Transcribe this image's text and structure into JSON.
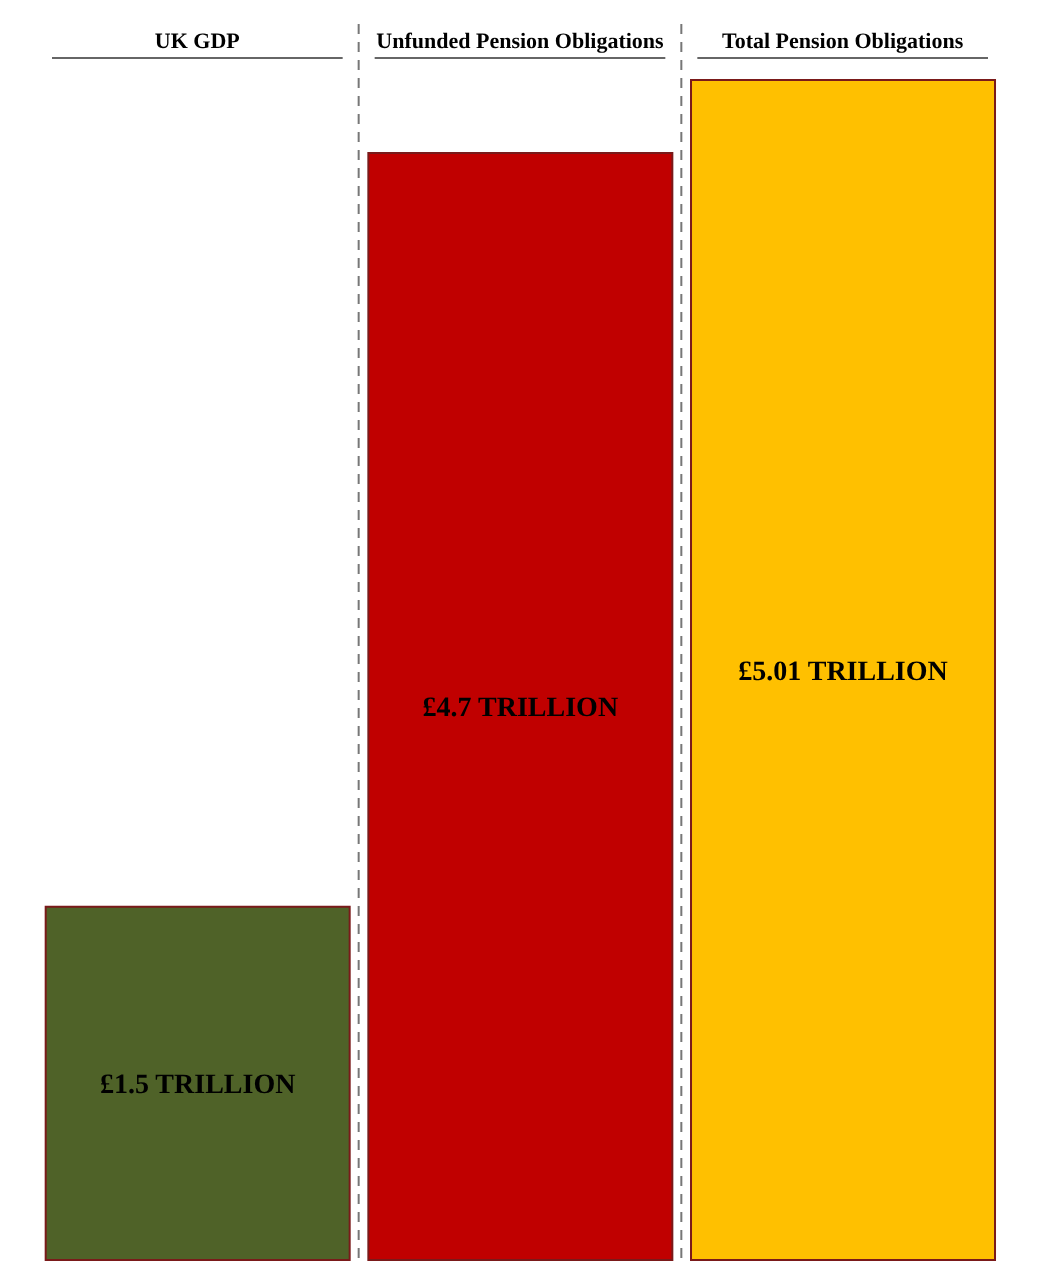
{
  "chart_data": {
    "type": "bar",
    "categories": [
      "UK GDP",
      "Unfunded Pension Obligations",
      "Total Pension Obligations"
    ],
    "values": [
      1.5,
      4.7,
      5.01
    ],
    "colors": [
      "#4f6228",
      "#c00000",
      "#ffc000"
    ],
    "value_labels": [
      "£1.5 TRILLION",
      "£4.7 TRILLION",
      "£5.01 TRILLION"
    ]
  }
}
